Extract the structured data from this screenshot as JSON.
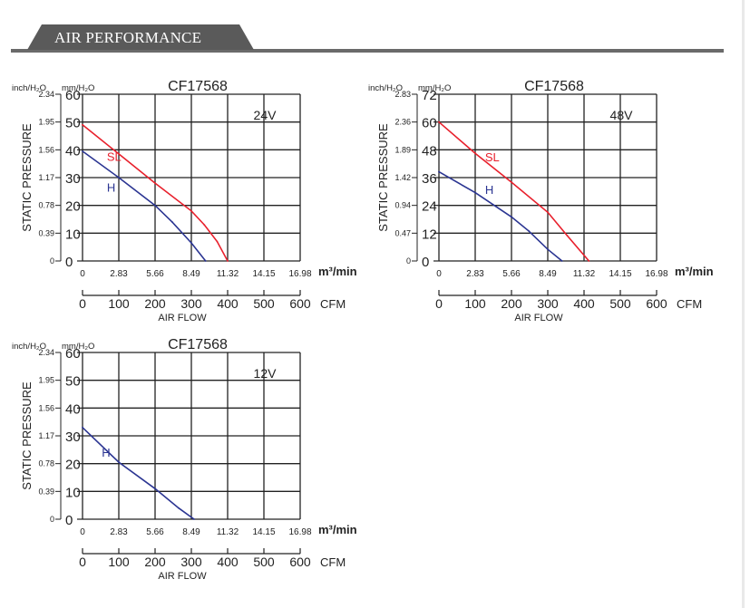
{
  "section": {
    "title": "AIR PERFORMANCE"
  },
  "colors": {
    "sl_curve": "#e8202c",
    "h_curve": "#2b3592",
    "grid": "#222222",
    "header": "#5a5a5a"
  },
  "chart_data": [
    {
      "type": "line",
      "title": "CF17568",
      "voltage_label": "24V",
      "ylabel": "STATIC PRESSURE",
      "xlabel": "AIR FLOW",
      "unit_left": "inch/H₂O",
      "unit_right": "mm/H₂O",
      "x_unit_m3": "m³/min",
      "x_unit_cfm": "CFM",
      "ylim": [
        0,
        60
      ],
      "xlim_m3": [
        0,
        16.98
      ],
      "xlim_cfm": [
        0,
        600
      ],
      "y_ticks_mm": [
        "0",
        "10",
        "20",
        "30",
        "40",
        "50",
        "60"
      ],
      "y_ticks_inch": [
        "0",
        "0.39",
        "0.78",
        "1.17",
        "1.56",
        "1.95",
        "2.34"
      ],
      "x_ticks_m3": [
        "0",
        "2.83",
        "5.66",
        "8.49",
        "11.32",
        "14.15",
        "16.98"
      ],
      "x_ticks_cfm": [
        "0",
        "100",
        "200",
        "300",
        "400",
        "500",
        "600"
      ],
      "grid": true,
      "series": [
        {
          "name": "SL",
          "color": "#e8202c",
          "label_at": [
            1.9,
            36
          ],
          "points": [
            [
              0,
              49
            ],
            [
              2.83,
              38.5
            ],
            [
              5.66,
              28
            ],
            [
              8.49,
              18
            ],
            [
              9.5,
              13
            ],
            [
              10.5,
              7
            ],
            [
              11.32,
              0
            ]
          ]
        },
        {
          "name": "H",
          "color": "#2b3592",
          "label_at": [
            1.9,
            25
          ],
          "points": [
            [
              0,
              39.5
            ],
            [
              2.83,
              30
            ],
            [
              5.66,
              20
            ],
            [
              7.0,
              14
            ],
            [
              8.49,
              6.5
            ],
            [
              9.6,
              0
            ]
          ]
        }
      ]
    },
    {
      "type": "line",
      "title": "CF17568",
      "voltage_label": "48V",
      "ylabel": "STATIC PRESSURE",
      "xlabel": "AIR FLOW",
      "unit_left": "inch/H₂O",
      "unit_right": "mm/H₂O",
      "x_unit_m3": "m³/min",
      "x_unit_cfm": "CFM",
      "ylim": [
        0,
        72
      ],
      "xlim_m3": [
        0,
        16.98
      ],
      "xlim_cfm": [
        0,
        600
      ],
      "y_ticks_mm": [
        "0",
        "12",
        "24",
        "36",
        "48",
        "60",
        "72"
      ],
      "y_ticks_inch": [
        "0",
        "0.47",
        "0.94",
        "1.42",
        "1.89",
        "2.36",
        "2.83"
      ],
      "x_ticks_m3": [
        "0",
        "2.83",
        "5.66",
        "8.49",
        "11.32",
        "14.15",
        "16.98"
      ],
      "x_ticks_cfm": [
        "0",
        "100",
        "200",
        "300",
        "400",
        "500",
        "600"
      ],
      "grid": true,
      "series": [
        {
          "name": "SL",
          "color": "#e8202c",
          "label_at": [
            3.6,
            43
          ],
          "points": [
            [
              0,
              60
            ],
            [
              2.83,
              46.5
            ],
            [
              5.66,
              34
            ],
            [
              8.49,
              21
            ],
            [
              10.0,
              11
            ],
            [
              11.7,
              0
            ]
          ]
        },
        {
          "name": "H",
          "color": "#2b3592",
          "label_at": [
            3.6,
            29
          ],
          "points": [
            [
              0,
              38.5
            ],
            [
              2.83,
              29.5
            ],
            [
              5.66,
              19
            ],
            [
              7.0,
              13
            ],
            [
              8.49,
              5
            ],
            [
              9.6,
              0
            ]
          ]
        }
      ]
    },
    {
      "type": "line",
      "title": "CF17568",
      "voltage_label": "12V",
      "ylabel": "STATIC PRESSURE",
      "xlabel": "AIR FLOW",
      "unit_left": "inch/H₂O",
      "unit_right": "mm/H₂O",
      "x_unit_m3": "m³/min",
      "x_unit_cfm": "CFM",
      "ylim": [
        0,
        60
      ],
      "xlim_m3": [
        0,
        16.98
      ],
      "xlim_cfm": [
        0,
        600
      ],
      "y_ticks_mm": [
        "0",
        "10",
        "20",
        "30",
        "40",
        "50",
        "60"
      ],
      "y_ticks_inch": [
        "0",
        "0.39",
        "0.78",
        "1.17",
        "1.56",
        "1.95",
        "2.34"
      ],
      "x_ticks_m3": [
        "0",
        "2.83",
        "5.66",
        "8.49",
        "11.32",
        "14.15",
        "16.98"
      ],
      "x_ticks_cfm": [
        "0",
        "100",
        "200",
        "300",
        "400",
        "500",
        "600"
      ],
      "grid": true,
      "series": [
        {
          "name": "H",
          "color": "#2b3592",
          "label_at": [
            1.5,
            22.5
          ],
          "points": [
            [
              0,
              33
            ],
            [
              2.83,
              20.5
            ],
            [
              5.66,
              11
            ],
            [
              7.5,
              4
            ],
            [
              8.7,
              0
            ]
          ]
        }
      ]
    }
  ]
}
